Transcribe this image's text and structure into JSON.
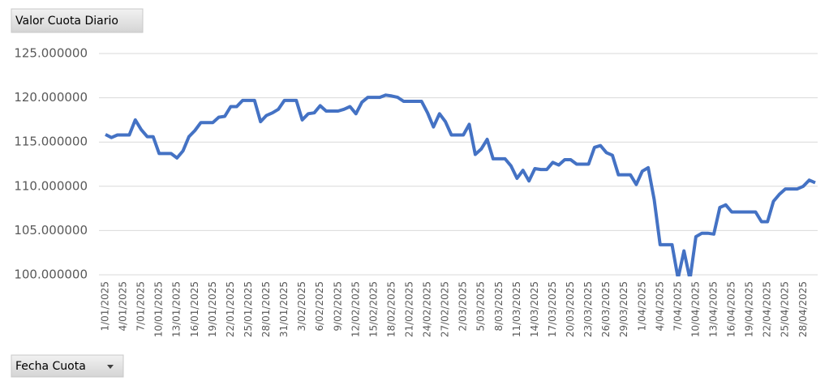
{
  "chart_data": {
    "type": "line",
    "value_field": "Valor Cuota Diario",
    "axis_field": "Fecha Cuota",
    "categories": [
      "1/01/2025",
      null,
      null,
      "4/01/2025",
      null,
      null,
      "7/01/2025",
      null,
      null,
      "10/01/2025",
      null,
      null,
      "13/01/2025",
      null,
      null,
      "16/01/2025",
      null,
      null,
      "19/01/2025",
      null,
      null,
      "22/01/2025",
      null,
      null,
      "25/01/2025",
      null,
      null,
      "28/01/2025",
      null,
      null,
      "31/01/2025",
      null,
      null,
      "3/02/2025",
      null,
      null,
      "6/02/2025",
      null,
      null,
      "9/02/2025",
      null,
      null,
      "12/02/2025",
      null,
      null,
      "15/02/2025",
      null,
      null,
      "18/02/2025",
      null,
      null,
      "21/02/2025",
      null,
      null,
      "24/02/2025",
      null,
      null,
      "27/02/2025",
      null,
      null,
      "2/03/2025",
      null,
      null,
      "5/03/2025",
      null,
      null,
      "8/03/2025",
      null,
      null,
      "11/03/2025",
      null,
      null,
      "14/03/2025",
      null,
      null,
      "17/03/2025",
      null,
      null,
      "20/03/2025",
      null,
      null,
      "23/03/2025",
      null,
      null,
      "26/03/2025",
      null,
      null,
      "29/03/2025",
      null,
      null,
      "1/04/2025",
      null,
      null,
      "4/04/2025",
      null,
      null,
      "7/04/2025",
      null,
      null,
      "10/04/2025",
      null,
      null,
      "13/04/2025",
      null,
      null,
      "16/04/2025",
      null,
      null,
      "19/04/2025",
      null,
      null,
      "22/04/2025",
      null,
      null,
      "25/04/2025",
      null,
      null,
      "28/04/2025",
      null,
      null
    ],
    "values": [
      115.85,
      115.5,
      115.8,
      115.8,
      115.8,
      117.5,
      116.4,
      115.6,
      115.6,
      113.7,
      113.7,
      113.7,
      113.2,
      114.0,
      115.6,
      116.3,
      117.2,
      117.2,
      117.2,
      117.8,
      117.9,
      119.0,
      119.0,
      119.7,
      119.7,
      119.7,
      117.3,
      118.0,
      118.3,
      118.7,
      119.7,
      119.7,
      119.7,
      117.5,
      118.2,
      118.3,
      119.1,
      118.5,
      118.5,
      118.5,
      118.7,
      119.0,
      118.2,
      119.5,
      120.05,
      120.05,
      120.05,
      120.3,
      120.2,
      120.05,
      119.6,
      119.6,
      119.6,
      119.6,
      118.3,
      116.7,
      118.2,
      117.3,
      115.8,
      115.8,
      115.8,
      117.0,
      113.6,
      114.2,
      115.3,
      113.1,
      113.1,
      113.1,
      112.3,
      110.9,
      111.8,
      110.6,
      112.0,
      111.9,
      111.9,
      112.7,
      112.4,
      113.0,
      113.0,
      112.5,
      112.5,
      112.5,
      114.4,
      114.6,
      113.8,
      113.5,
      111.3,
      111.3,
      111.3,
      110.2,
      111.7,
      112.1,
      108.5,
      103.4,
      103.4,
      103.4,
      99.6,
      102.7,
      99.5,
      104.3,
      104.7,
      104.7,
      104.6,
      107.6,
      107.9,
      107.1,
      107.1,
      107.1,
      107.1,
      107.1,
      106.0,
      106.0,
      108.3,
      109.1,
      109.7,
      109.7,
      109.7,
      110.0,
      110.7,
      110.4
    ],
    "color": "#4472c4",
    "ylim": [
      100,
      125
    ],
    "yticks": [
      {
        "value": 100,
        "label": "100.000000"
      },
      {
        "value": 105,
        "label": "105.000000"
      },
      {
        "value": 110,
        "label": "110.000000"
      },
      {
        "value": 115,
        "label": "115.000000"
      },
      {
        "value": 120,
        "label": "120.000000"
      },
      {
        "value": 125,
        "label": "125.000000"
      }
    ],
    "grid": true
  }
}
